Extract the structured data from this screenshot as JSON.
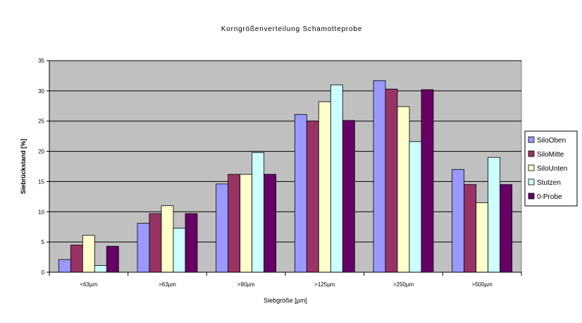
{
  "chart_data": {
    "type": "bar",
    "title": "Korngrößenverteilung Schamotteprobe",
    "xlabel": "Siebgröße [µm]",
    "ylabel": "Siebrückstand [%]",
    "ylim": [
      0,
      35
    ],
    "yticks": [
      0,
      5,
      10,
      15,
      20,
      25,
      30,
      35
    ],
    "grid": true,
    "legend_position": "right",
    "plot_background": "#c0c0c0",
    "categories": [
      "<63µm",
      ">63µm",
      ">90µm",
      ">125µm",
      ">250µm",
      ">500µm"
    ],
    "series": [
      {
        "name": "SiloOben",
        "color": "#9999ff",
        "values": [
          2.1,
          8.1,
          14.6,
          26.1,
          31.7,
          17.0
        ]
      },
      {
        "name": "SiloMitte",
        "color": "#993366",
        "values": [
          4.5,
          9.7,
          16.2,
          25.0,
          30.3,
          14.5
        ]
      },
      {
        "name": "SiloUnten",
        "color": "#ffffcc",
        "values": [
          6.1,
          11.0,
          16.2,
          28.2,
          27.4,
          11.5
        ]
      },
      {
        "name": "Stutzen",
        "color": "#ccffff",
        "values": [
          1.1,
          7.3,
          19.8,
          31.0,
          21.6,
          19.0
        ]
      },
      {
        "name": "0-Probe",
        "color": "#660066",
        "values": [
          4.3,
          9.7,
          16.2,
          25.1,
          30.2,
          14.5
        ]
      }
    ]
  }
}
